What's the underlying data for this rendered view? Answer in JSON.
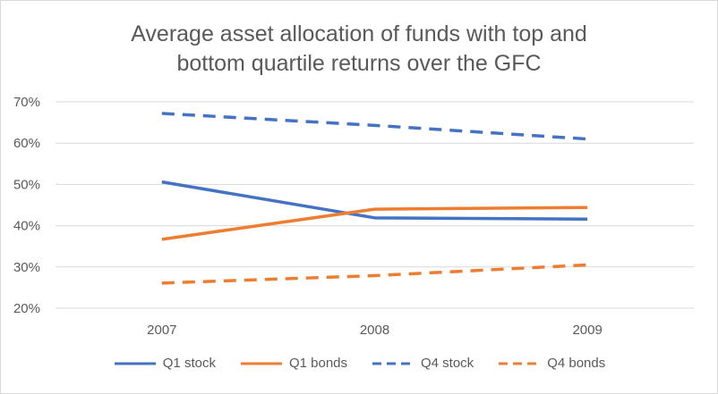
{
  "chart_data": {
    "type": "line",
    "title_lines": [
      "Average asset allocation of funds with top and",
      "bottom quartile returns over the GFC"
    ],
    "xlabel": "",
    "ylabel": "",
    "categories": [
      "2007",
      "2008",
      "2009"
    ],
    "ylim": [
      20,
      70
    ],
    "yticks": [
      "20%",
      "30%",
      "40%",
      "50%",
      "60%",
      "70%"
    ],
    "ytick_values": [
      20,
      30,
      40,
      50,
      60,
      70
    ],
    "grid": true,
    "legend_position": "bottom",
    "series": [
      {
        "name": "Q1 stock",
        "values": [
          50.6,
          41.9,
          41.6
        ],
        "color": "#4472c4",
        "dash": "solid"
      },
      {
        "name": "Q1 bonds",
        "values": [
          36.7,
          44.0,
          44.4
        ],
        "color": "#ed7d31",
        "dash": "solid"
      },
      {
        "name": "Q4 stock",
        "values": [
          67.2,
          64.3,
          61.0
        ],
        "color": "#4472c4",
        "dash": "dashed"
      },
      {
        "name": "Q4 bonds",
        "values": [
          26.1,
          27.9,
          30.5
        ],
        "color": "#ed7d31",
        "dash": "dashed"
      }
    ]
  }
}
